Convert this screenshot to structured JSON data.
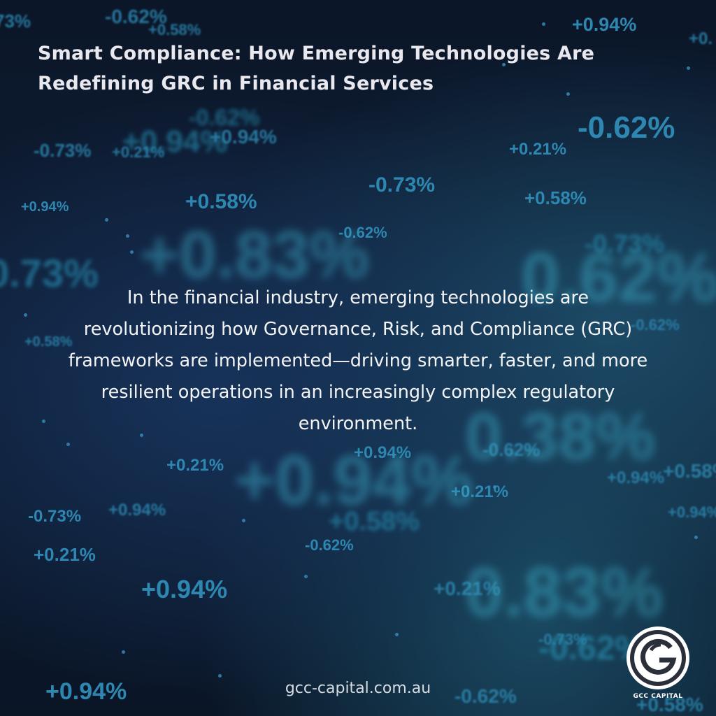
{
  "headline": "Smart Compliance: How Emerging Technologies Are Redefining GRC in Financial Services",
  "body": "In the financial industry, emerging technologies are revolutionizing how Governance, Risk, and Compliance (GRC) frameworks are implemented—driving smarter, faster, and more resilient operations in an increasingly complex regulatory environment.",
  "website": "gcc-capital.com.au",
  "logo": {
    "name": "GCC CAPITAL",
    "icon": "gcc-capital-logo-icon"
  },
  "background_tickers": [
    "73%",
    "-0.62%",
    "+0.58%",
    "+0.94%",
    "+0.",
    "-0.62%",
    "+0.94%",
    "-0.73%",
    "+0.21%",
    "-0.62%",
    "+0.94%",
    "+0.21%",
    "-0.73%",
    "+0.94%",
    "+0.58%",
    "+0.58%",
    "-0.62%",
    "-0.73%",
    "0.73%",
    "+0.58%",
    "-0.62%",
    "+0.58%",
    "-0.62%",
    "+0.94%",
    "+0.21%",
    "+0.94%",
    "+0.21%",
    "-0.73%",
    "+0.94%",
    "+0.58%",
    "-0.62%",
    "+0.21%",
    "+0.94%",
    "+0.21%",
    "-0.73%",
    "+0.94%",
    "-0.62%",
    "+0.58%",
    "+0.94%",
    "0.38%",
    "+0.83%",
    "+0.94%",
    "0.83%",
    "-0.62%",
    "0.62%"
  ],
  "colors": {
    "background": "#0b1526",
    "ticker": "#2d87b0",
    "headline": "#e8e8ee",
    "body": "#f4f4f6"
  }
}
